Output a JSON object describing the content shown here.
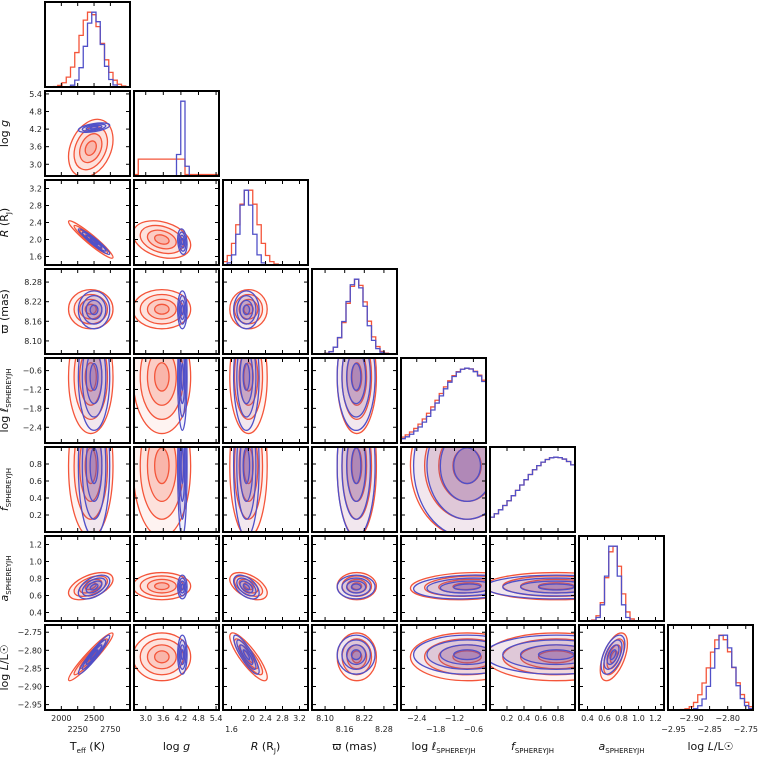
{
  "chart_data": {
    "type": "corner",
    "colors": {
      "series_a": "#f4553a",
      "series_b": "#5050c8"
    },
    "params": [
      {
        "label": {
          "pre": "T",
          "sub": "eff",
          "post": "  (K)"
        },
        "range": [
          1750,
          3050
        ],
        "ticks": [
          "2000",
          "2250",
          "2500",
          "2750"
        ],
        "tickvals": [
          2000,
          2250,
          2500,
          2750
        ],
        "a": {
          "mean": 2450,
          "sd": 170
        },
        "b": {
          "mean": 2500,
          "sd": 120
        }
      },
      {
        "label": {
          "pre": "log ",
          "it": "g",
          "sub": "",
          "post": ""
        },
        "range": [
          2.6,
          5.5
        ],
        "ticks": [
          "3.0",
          "3.6",
          "4.2",
          "4.8",
          "5.4"
        ],
        "tickvals": [
          3.0,
          3.6,
          4.2,
          4.8,
          5.4
        ],
        "a": {
          "mean": 3.4,
          "sd": 0.5,
          "flat": [
            2.7,
            4.4
          ]
        },
        "b": {
          "mean": 4.25,
          "sd": 0.08
        }
      },
      {
        "label": {
          "pre": "R",
          "sub": "",
          "post": "  (R",
          "sub2": "J",
          "post2": ")"
        },
        "range": [
          1.4,
          3.4
        ],
        "ticks": [
          "1.6",
          "2.0",
          "2.4",
          "2.8",
          "3.2"
        ],
        "tickvals": [
          1.6,
          2.0,
          2.4,
          2.8,
          3.2
        ],
        "a": {
          "mean": 2.0,
          "sd": 0.22
        },
        "b": {
          "mean": 1.95,
          "sd": 0.15
        }
      },
      {
        "label": {
          "pre": "ϖ",
          "sub": "",
          "post": "  (mas)"
        },
        "range": [
          8.06,
          8.32
        ],
        "ticks": [
          "8.10",
          "8.16",
          "8.22",
          "8.28"
        ],
        "tickvals": [
          8.1,
          8.16,
          8.22,
          8.28
        ],
        "a": {
          "mean": 8.197,
          "sd": 0.03
        },
        "b": {
          "mean": 8.195,
          "sd": 0.029
        }
      },
      {
        "label": {
          "pre": "log ",
          "it": "ℓ",
          "sub": "SPHEREYJH",
          "post": ""
        },
        "range": [
          -2.9,
          -0.2
        ],
        "ticks": [
          "−2.4",
          "−1.8",
          "−1.2",
          "−0.6"
        ],
        "tickvals": [
          -2.4,
          -1.8,
          -1.2,
          -0.6
        ],
        "a": {
          "mean": -0.8,
          "sd": 0.9,
          "trunc": true
        },
        "b": {
          "mean": -0.8,
          "sd": 0.85,
          "trunc": true
        }
      },
      {
        "label": {
          "pre": "",
          "it": "f",
          "sub": "SPHEREYJH",
          "post": ""
        },
        "range": [
          0.0,
          1.0
        ],
        "ticks": [
          "0.2",
          "0.4",
          "0.6",
          "0.8"
        ],
        "tickvals": [
          0.2,
          0.4,
          0.6,
          0.8
        ],
        "a": {
          "mean": 0.78,
          "sd": 0.42,
          "trunc": true
        },
        "b": {
          "mean": 0.78,
          "sd": 0.42,
          "trunc": true
        }
      },
      {
        "label": {
          "pre": "",
          "it": "a",
          "sub": "SPHEREYJH",
          "post": ""
        },
        "range": [
          0.3,
          1.3
        ],
        "ticks": [
          "0.4",
          "0.6",
          "0.8",
          "1.0",
          "1.2"
        ],
        "tickvals": [
          0.4,
          0.6,
          0.8,
          1.0,
          1.2
        ],
        "a": {
          "mean": 0.71,
          "sd": 0.08
        },
        "b": {
          "mean": 0.7,
          "sd": 0.07
        }
      },
      {
        "label": {
          "pre": "log ",
          "it": "L",
          "sub": "",
          "post": "/L☉"
        },
        "range": [
          -2.965,
          -2.73
        ],
        "ticks": [
          "−2.95",
          "−2.90",
          "−2.85",
          "−2.80",
          "−2.75"
        ],
        "tickvals": [
          -2.95,
          -2.9,
          -2.85,
          -2.8,
          -2.75
        ],
        "a": {
          "mean": -2.818,
          "sd": 0.033
        },
        "b": {
          "mean": -2.812,
          "sd": 0.027
        }
      }
    ],
    "correlations": [
      {
        "i": 0,
        "j": 1,
        "a": 0.3,
        "b": 0.5
      },
      {
        "i": 0,
        "j": 2,
        "a": -0.95,
        "b": -0.95
      },
      {
        "i": 0,
        "j": 6,
        "a": 0.5,
        "b": 0.5
      },
      {
        "i": 0,
        "j": 7,
        "a": 0.95,
        "b": 0.95
      },
      {
        "i": 1,
        "j": 2,
        "a": -0.3,
        "b": -0.2
      },
      {
        "i": 2,
        "j": 6,
        "a": -0.5,
        "b": -0.5
      },
      {
        "i": 2,
        "j": 7,
        "a": -0.85,
        "b": -0.85
      },
      {
        "i": 6,
        "j": 7,
        "a": 0.55,
        "b": 0.55
      },
      {
        "i": 4,
        "j": 6,
        "a": 0.15,
        "b": 0.15
      }
    ]
  }
}
